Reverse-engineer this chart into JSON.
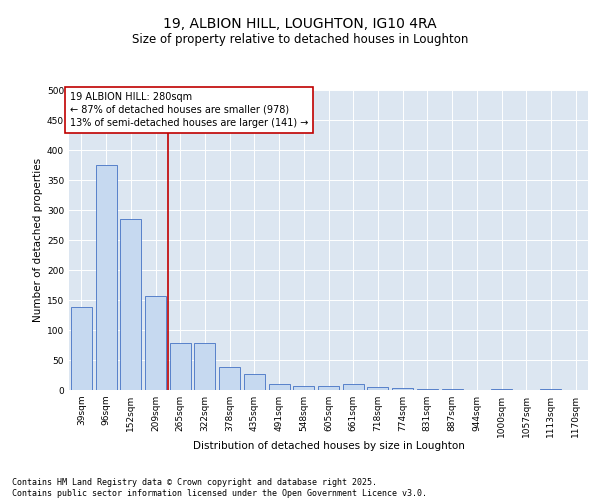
{
  "title": "19, ALBION HILL, LOUGHTON, IG10 4RA",
  "subtitle": "Size of property relative to detached houses in Loughton",
  "xlabel": "Distribution of detached houses by size in Loughton",
  "ylabel": "Number of detached properties",
  "categories": [
    "39sqm",
    "96sqm",
    "152sqm",
    "209sqm",
    "265sqm",
    "322sqm",
    "378sqm",
    "435sqm",
    "491sqm",
    "548sqm",
    "605sqm",
    "661sqm",
    "718sqm",
    "774sqm",
    "831sqm",
    "887sqm",
    "944sqm",
    "1000sqm",
    "1057sqm",
    "1113sqm",
    "1170sqm"
  ],
  "values": [
    139,
    375,
    285,
    157,
    78,
    78,
    38,
    27,
    10,
    7,
    7,
    10,
    5,
    4,
    2,
    1,
    0,
    1,
    0,
    1,
    0
  ],
  "bar_color": "#c6d9f0",
  "bar_edge_color": "#4472c4",
  "vline_x": 3.5,
  "vline_color": "#c00000",
  "annotation_text": "19 ALBION HILL: 280sqm\n← 87% of detached houses are smaller (978)\n13% of semi-detached houses are larger (141) →",
  "annotation_box_color": "#c00000",
  "ylim": [
    0,
    500
  ],
  "yticks": [
    0,
    50,
    100,
    150,
    200,
    250,
    300,
    350,
    400,
    450,
    500
  ],
  "plot_bg_color": "#dce6f1",
  "footer_line1": "Contains HM Land Registry data © Crown copyright and database right 2025.",
  "footer_line2": "Contains public sector information licensed under the Open Government Licence v3.0.",
  "title_fontsize": 10,
  "subtitle_fontsize": 8.5,
  "axis_label_fontsize": 7.5,
  "tick_fontsize": 6.5,
  "annotation_fontsize": 7,
  "footer_fontsize": 6
}
